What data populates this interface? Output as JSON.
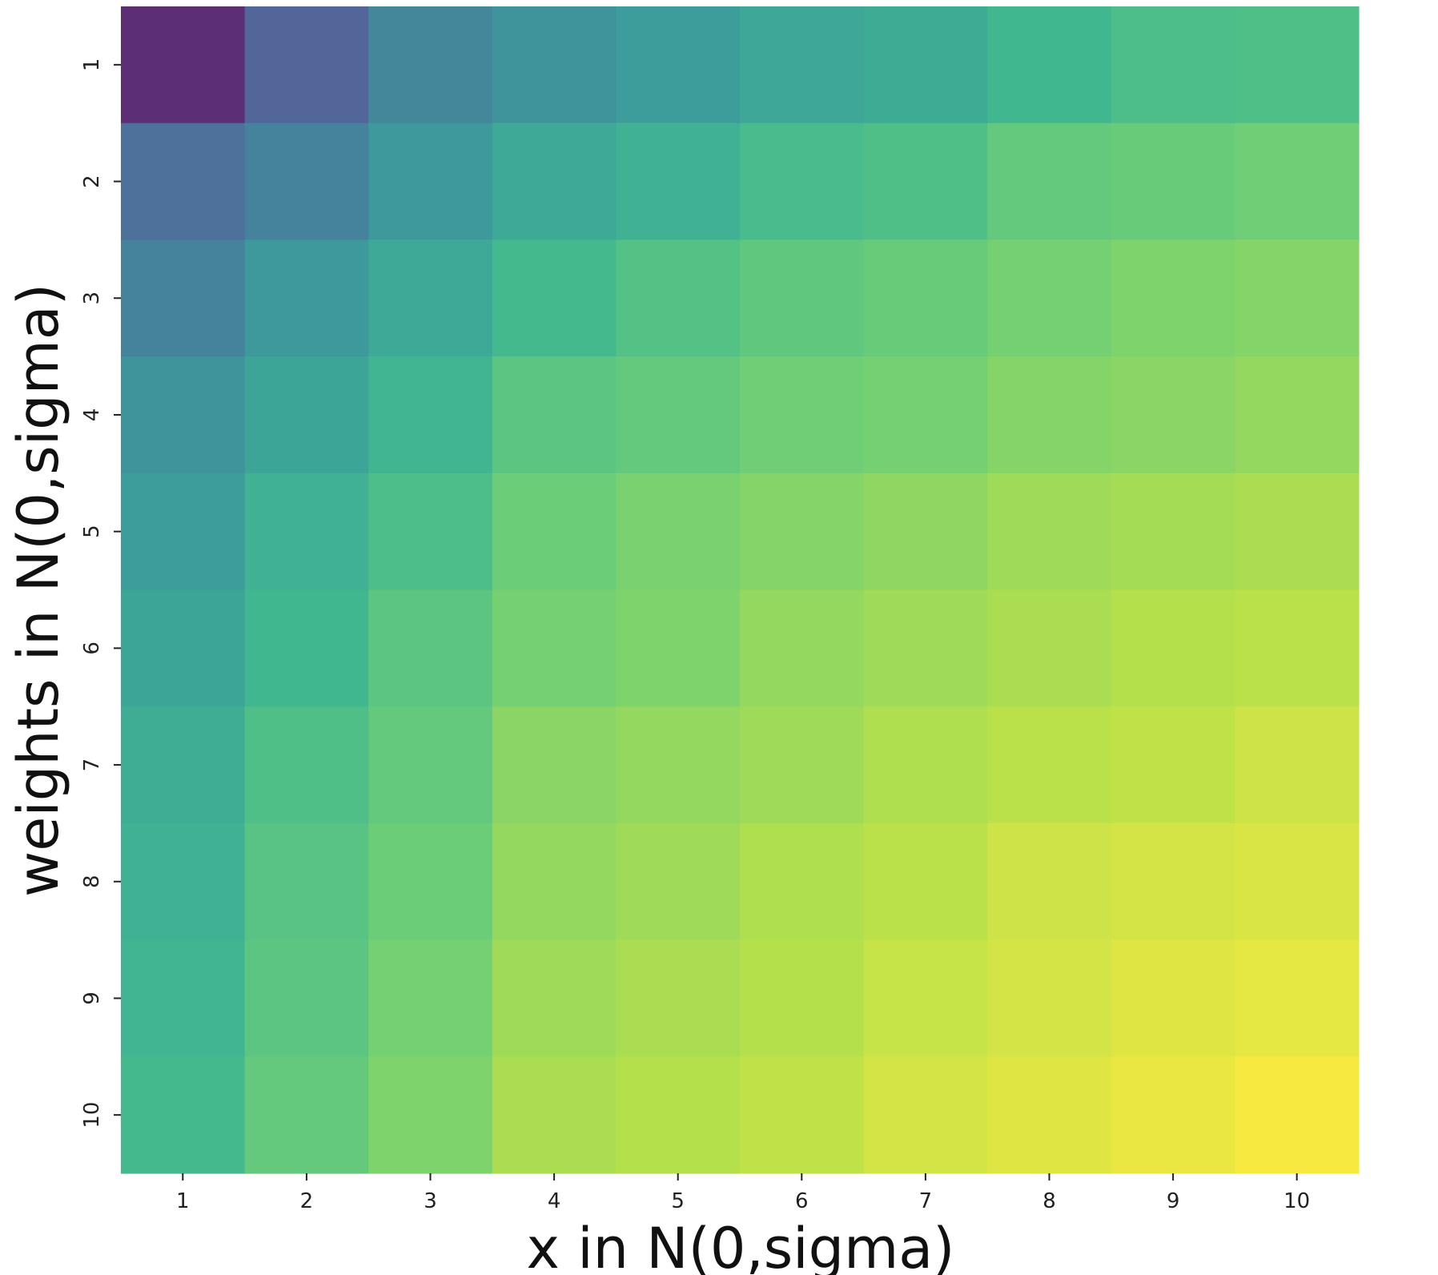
{
  "chart_data": {
    "type": "heatmap",
    "xlabel": "x in N(0,sigma)",
    "ylabel": "weights in N(0,sigma)",
    "x_categories": [
      "1",
      "2",
      "3",
      "4",
      "5",
      "6",
      "7",
      "8",
      "9",
      "10"
    ],
    "y_categories": [
      "1",
      "2",
      "3",
      "4",
      "5",
      "6",
      "7",
      "8",
      "9",
      "10"
    ],
    "colormap": "viridis",
    "colorbar": false,
    "values": [
      [
        0.05,
        0.25,
        0.4,
        0.46,
        0.5,
        0.55,
        0.57,
        0.63,
        0.66,
        0.67
      ],
      [
        0.3,
        0.38,
        0.48,
        0.56,
        0.6,
        0.65,
        0.67,
        0.72,
        0.73,
        0.75
      ],
      [
        0.38,
        0.48,
        0.56,
        0.64,
        0.68,
        0.71,
        0.73,
        0.76,
        0.78,
        0.79
      ],
      [
        0.46,
        0.54,
        0.62,
        0.7,
        0.72,
        0.75,
        0.76,
        0.79,
        0.8,
        0.82
      ],
      [
        0.5,
        0.6,
        0.66,
        0.74,
        0.77,
        0.79,
        0.81,
        0.84,
        0.85,
        0.86
      ],
      [
        0.54,
        0.63,
        0.7,
        0.76,
        0.78,
        0.82,
        0.84,
        0.86,
        0.88,
        0.89
      ],
      [
        0.58,
        0.67,
        0.72,
        0.8,
        0.82,
        0.84,
        0.87,
        0.89,
        0.9,
        0.92
      ],
      [
        0.6,
        0.69,
        0.74,
        0.82,
        0.84,
        0.87,
        0.89,
        0.92,
        0.93,
        0.94
      ],
      [
        0.62,
        0.7,
        0.76,
        0.84,
        0.86,
        0.88,
        0.91,
        0.93,
        0.95,
        0.96
      ],
      [
        0.64,
        0.72,
        0.78,
        0.86,
        0.88,
        0.9,
        0.93,
        0.95,
        0.97,
        0.99
      ]
    ]
  }
}
